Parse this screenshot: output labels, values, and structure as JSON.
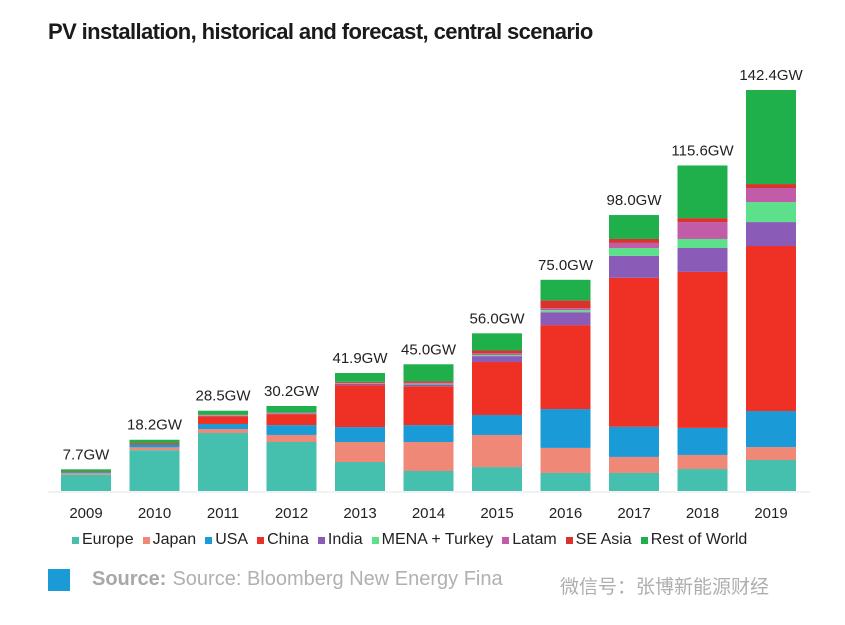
{
  "chart_data": {
    "type": "bar",
    "stacked": true,
    "title": "PV installation, historical and forecast, central scenario",
    "xlabel": "",
    "ylabel": "",
    "ylim": [
      0,
      145
    ],
    "grid": false,
    "legend_position": "bottom",
    "categories": [
      "2009",
      "2010",
      "2011",
      "2012",
      "2013",
      "2014",
      "2015",
      "2016",
      "2017",
      "2018",
      "2019"
    ],
    "totals_labels": [
      "7.7GW",
      "18.2GW",
      "28.5GW",
      "30.2GW",
      "41.9GW",
      "45.0GW",
      "56.0GW",
      "75.0GW",
      "98.0GW",
      "115.6GW",
      "142.4GW"
    ],
    "series": [
      {
        "name": "Europe",
        "color": "#45bfae",
        "values": [
          5.8,
          14.5,
          20.6,
          17.4,
          10.3,
          7.1,
          8.5,
          6.4,
          6.4,
          7.8,
          11.0
        ]
      },
      {
        "name": "Japan",
        "color": "#f08878",
        "values": [
          0.5,
          1.0,
          1.4,
          2.5,
          7.1,
          10.3,
          11.4,
          8.9,
          5.7,
          5.0,
          4.6
        ]
      },
      {
        "name": "USA",
        "color": "#1a9ad6",
        "values": [
          0.4,
          1.0,
          1.8,
          3.5,
          5.3,
          6.0,
          7.1,
          13.8,
          10.7,
          9.6,
          12.8
        ]
      },
      {
        "name": "China",
        "color": "#ee3124",
        "values": [
          0.2,
          0.5,
          2.7,
          3.9,
          14.9,
          13.8,
          18.8,
          29.8,
          52.9,
          55.4,
          58.6
        ]
      },
      {
        "name": "India",
        "color": "#8a5cb8",
        "values": [
          0,
          0,
          0.2,
          0.3,
          0.4,
          0.6,
          2.1,
          4.6,
          7.8,
          8.5,
          8.5
        ]
      },
      {
        "name": "MENA + Turkey",
        "color": "#5de08a",
        "values": [
          0,
          0,
          0.1,
          0.1,
          0.2,
          0.3,
          0.4,
          0.7,
          2.8,
          3.2,
          7.1
        ]
      },
      {
        "name": "Latam",
        "color": "#c25ba8",
        "values": [
          0,
          0,
          0.1,
          0.1,
          0.2,
          0.3,
          0.6,
          0.7,
          1.8,
          6.0,
          5.0
        ]
      },
      {
        "name": "SE Asia",
        "color": "#d8342c",
        "values": [
          0,
          0,
          0.2,
          0.1,
          0.4,
          0.5,
          1.0,
          2.8,
          1.4,
          1.4,
          1.4
        ]
      },
      {
        "name": "Rest of World",
        "color": "#1fb04c",
        "values": [
          0.8,
          1.2,
          1.4,
          2.3,
          3.1,
          6.1,
          6.1,
          7.3,
          8.5,
          18.7,
          33.4
        ]
      }
    ]
  },
  "source": {
    "label": "Source:",
    "text": "Source: Bloomberg New Energy Fina"
  },
  "watermark": "微信号：张博新能源财经"
}
